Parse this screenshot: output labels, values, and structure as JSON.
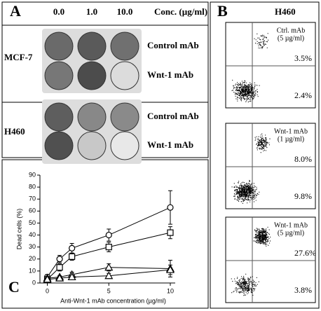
{
  "panel_a": {
    "label": "A",
    "concentrations": [
      "0.0",
      "1.0",
      "10.0"
    ],
    "conc_label": "Conc. (µg/ml)",
    "cell_lines": [
      {
        "name": "MCF-7",
        "rows": [
          "Control mAb",
          "Wnt-1 mAb"
        ]
      },
      {
        "name": "H460",
        "rows": [
          "Control mAb",
          "Wnt-1 mAb"
        ]
      }
    ]
  },
  "panel_b": {
    "label": "B",
    "cell_line": "H460",
    "plots": [
      {
        "treatment": [
          "Ctrl. mAb",
          "(5 µg/ml)"
        ],
        "upper_right": "3.5%",
        "lower_right": "2.4%"
      },
      {
        "treatment": [
          "Wnt-1 mAb",
          "(1 µg/ml)"
        ],
        "upper_right": "8.0%",
        "lower_right": "9.8%"
      },
      {
        "treatment": [
          "Wnt-1 mAb",
          "(5 µg/ml)"
        ],
        "upper_right": "27.6%",
        "lower_right": "3.8%"
      }
    ]
  },
  "panel_c": {
    "label": "C",
    "type": "line",
    "x_label": "Anti-Wnt-1 mAb concentration (µg/ml)",
    "y_label": "Dead cells (%)",
    "x": [
      0,
      1,
      2,
      5,
      10
    ],
    "xlim": [
      -0.6,
      10.4
    ],
    "xticks": [
      0,
      5,
      10
    ],
    "ylim": [
      0,
      90
    ],
    "yticks": [
      0,
      10,
      20,
      30,
      40,
      50,
      60,
      70,
      80,
      90
    ],
    "series": [
      {
        "marker": "circle",
        "values": [
          5,
          20,
          29,
          40,
          63
        ],
        "errors": [
          2,
          3,
          4,
          5,
          14
        ]
      },
      {
        "marker": "square",
        "values": [
          3,
          13,
          22,
          30,
          42
        ],
        "errors": [
          2,
          3,
          3,
          4,
          5
        ]
      },
      {
        "marker": "triangle",
        "values": [
          4,
          5,
          7,
          13,
          12
        ],
        "errors": [
          1,
          1,
          2,
          3,
          7
        ]
      },
      {
        "marker": "triangle",
        "values": [
          3,
          4,
          5,
          6,
          11
        ],
        "errors": [
          1,
          1,
          1,
          2,
          4
        ]
      }
    ]
  }
}
